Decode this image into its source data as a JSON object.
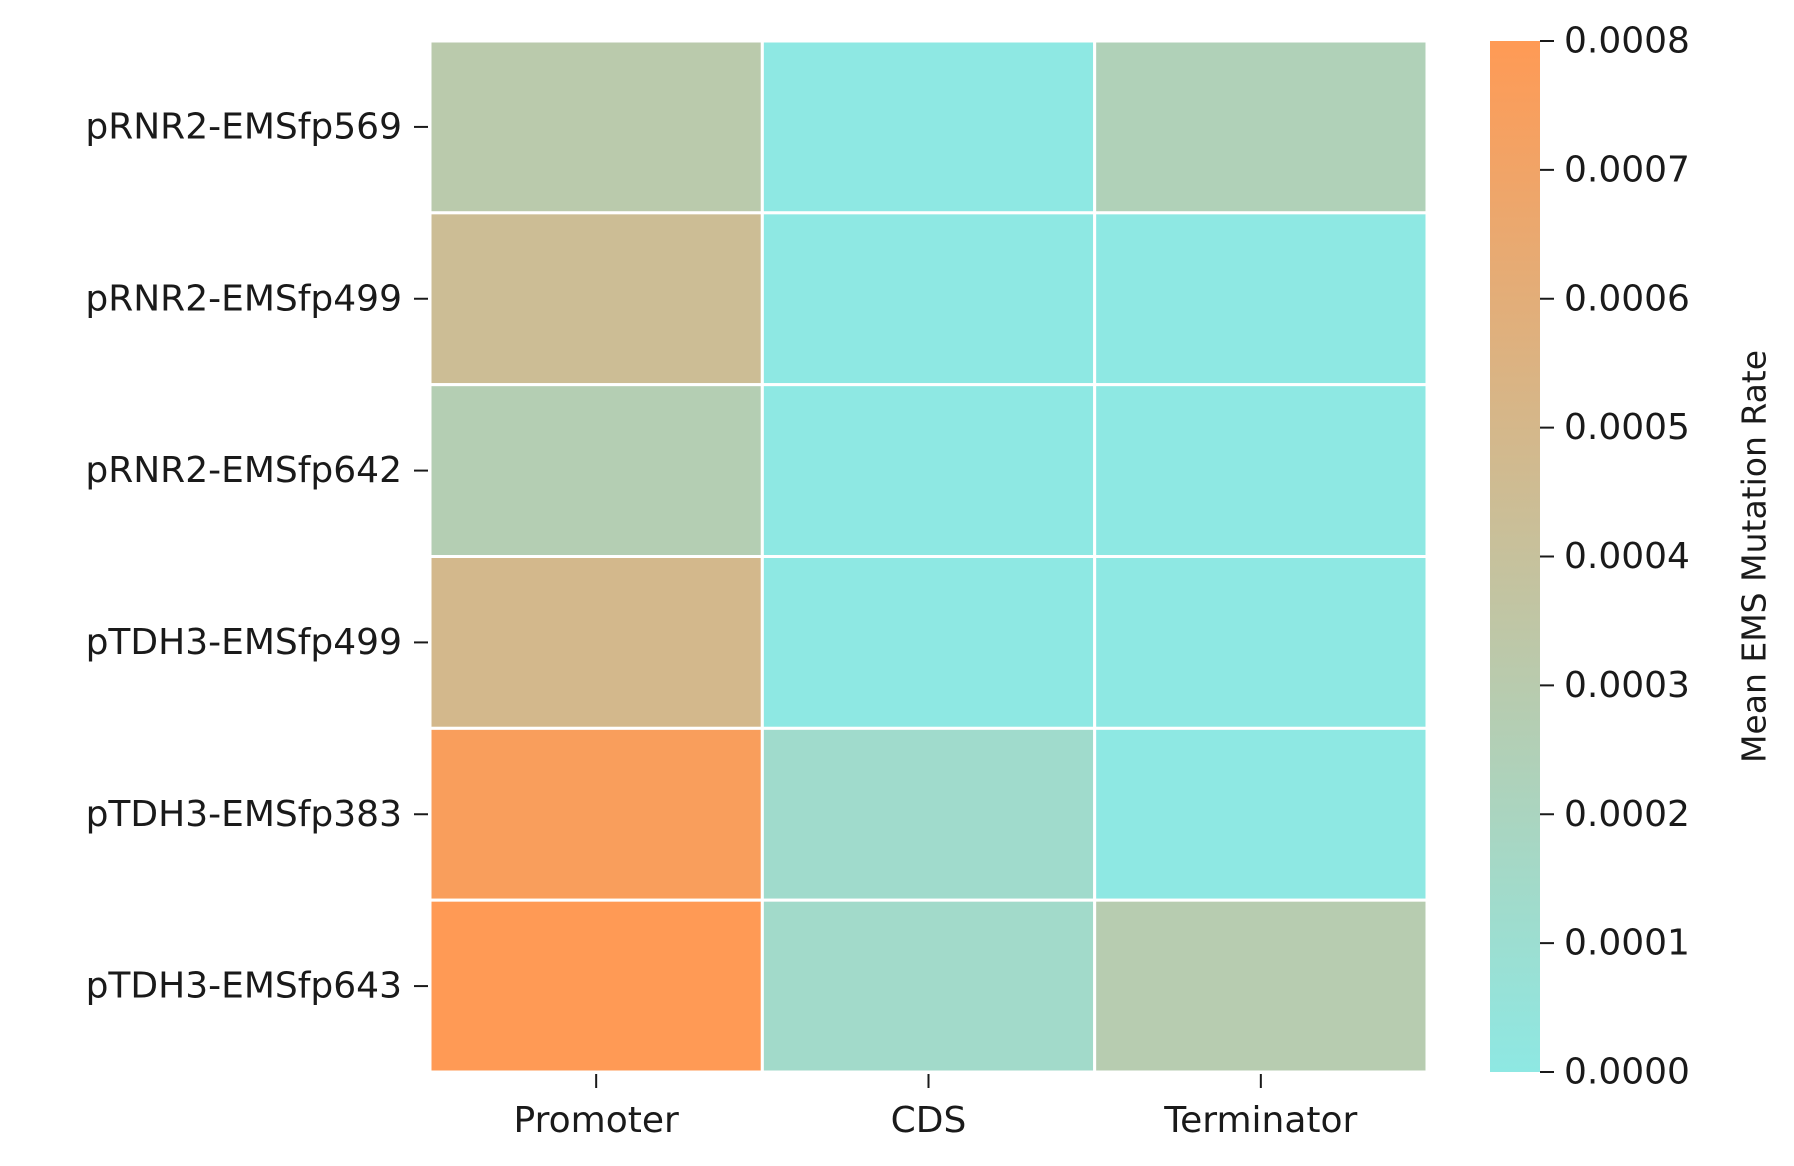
{
  "chart_data": {
    "type": "heatmap",
    "rows": [
      "pRNR2-EMSfp569",
      "pRNR2-EMSfp499",
      "pRNR2-EMSfp642",
      "pTDH3-EMSfp499",
      "pTDH3-EMSfp383",
      "pTDH3-EMSfp643"
    ],
    "columns": [
      "Promoter",
      "CDS",
      "Terminator"
    ],
    "values": [
      [
        0.00031,
        0.0,
        0.00024
      ],
      [
        0.00044,
        0.0,
        0.0
      ],
      [
        0.00027,
        0.0,
        0.0
      ],
      [
        0.00049,
        0.0,
        0.0
      ],
      [
        0.00076,
        0.00013,
        0.0
      ],
      [
        0.0008,
        0.00014,
        0.00029
      ]
    ],
    "colorbar": {
      "label": "Mean EMS Mutation Rate",
      "range": [
        0.0,
        0.0008
      ],
      "ticks": [
        0.0,
        0.0001,
        0.0002,
        0.0003,
        0.0004,
        0.0005,
        0.0006,
        0.0007,
        0.0008
      ],
      "tick_labels": [
        "0.0000",
        "0.0001",
        "0.0002",
        "0.0003",
        "0.0004",
        "0.0005",
        "0.0006",
        "0.0007",
        "0.0008"
      ],
      "color_low": "#8ee8e3",
      "color_high": "#ff9a55"
    }
  }
}
